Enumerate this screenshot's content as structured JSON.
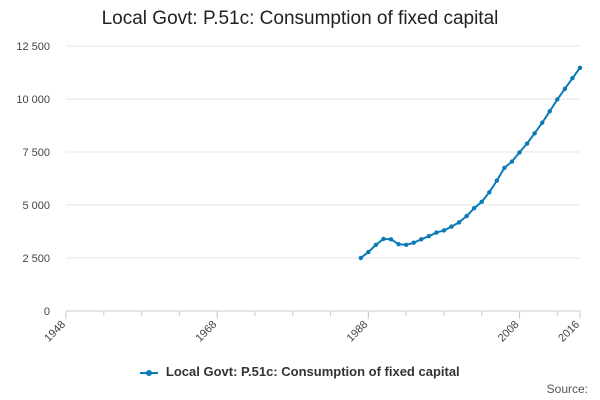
{
  "chart_data": {
    "type": "line",
    "title": "Local Govt: P.51c: Consumption of fixed capital",
    "xlabel": "",
    "ylabel": "",
    "xlim": [
      1948,
      2016
    ],
    "ylim": [
      0,
      12500
    ],
    "x_ticks": [
      1948,
      1968,
      1988,
      2008,
      2016
    ],
    "y_ticks": [
      0,
      2500,
      5000,
      7500,
      10000,
      12500
    ],
    "y_tick_labels": [
      "0",
      "2 500",
      "5 000",
      "7 500",
      "10 000",
      "12 500"
    ],
    "series": [
      {
        "name": "Local Govt: P.51c: Consumption of fixed capital",
        "color": "#0b7ab8",
        "x": [
          1987,
          1988,
          1989,
          1990,
          1991,
          1992,
          1993,
          1994,
          1995,
          1996,
          1997,
          1998,
          1999,
          2000,
          2001,
          2002,
          2003,
          2004,
          2005,
          2006,
          2007,
          2008,
          2009,
          2010,
          2011,
          2012,
          2013,
          2014,
          2015,
          2016
        ],
        "values": [
          2500,
          2780,
          3120,
          3400,
          3380,
          3150,
          3120,
          3220,
          3380,
          3530,
          3700,
          3800,
          3980,
          4180,
          4480,
          4850,
          5150,
          5600,
          6150,
          6750,
          7050,
          7480,
          7900,
          8380,
          8880,
          9420,
          9980,
          10480,
          10980,
          11470
        ]
      }
    ],
    "legend": [
      "Local Govt: P.51c: Consumption of fixed capital"
    ],
    "legend_position": "bottom",
    "source_label": "Source:"
  }
}
